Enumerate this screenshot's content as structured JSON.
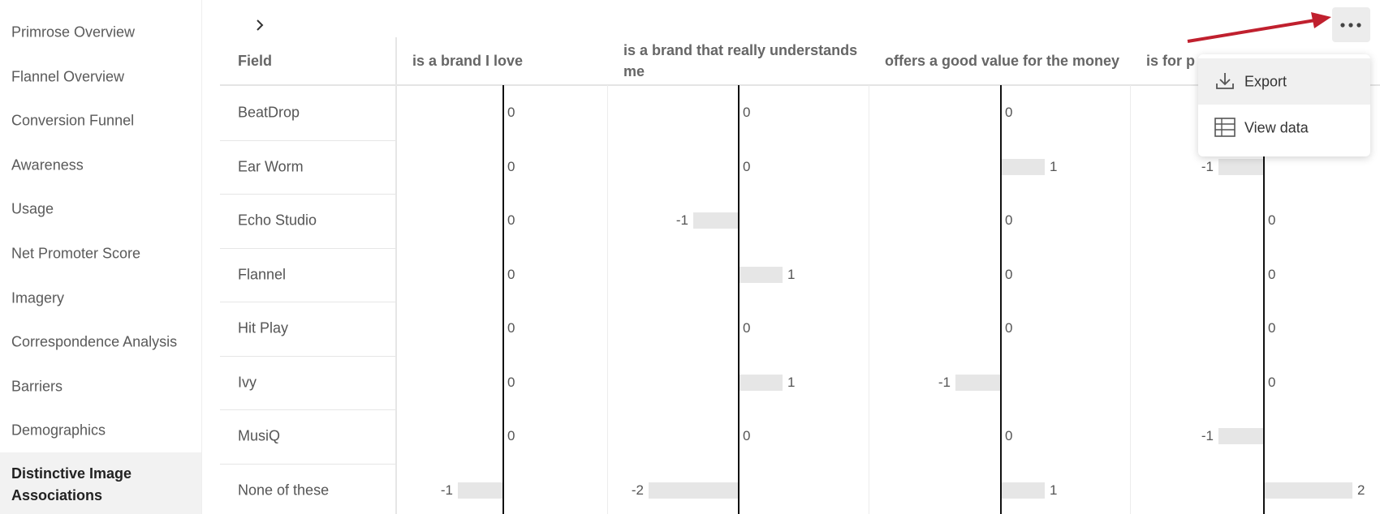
{
  "sidebar": {
    "items": [
      "Primrose Overview",
      "Flannel Overview",
      "Conversion Funnel",
      "Awareness",
      "Usage",
      "Net Promoter Score",
      "Imagery",
      "Correspondence Analysis",
      "Barriers",
      "Demographics"
    ],
    "selected": "Distinctive Image Associations"
  },
  "table": {
    "field_header": "Field",
    "columns": [
      "is a brand I love",
      "is a brand that really understands me",
      "offers a good value for the money",
      "is for p"
    ],
    "rows": [
      {
        "label": "BeatDrop",
        "values": [
          0,
          0,
          0,
          null
        ]
      },
      {
        "label": "Ear Worm",
        "values": [
          0,
          0,
          1,
          -1
        ]
      },
      {
        "label": "Echo Studio",
        "values": [
          0,
          -1,
          0,
          0
        ]
      },
      {
        "label": "Flannel",
        "values": [
          0,
          1,
          0,
          0
        ]
      },
      {
        "label": "Hit Play",
        "values": [
          0,
          0,
          0,
          0
        ]
      },
      {
        "label": "Ivy",
        "values": [
          0,
          1,
          -1,
          0
        ]
      },
      {
        "label": "MusiQ",
        "values": [
          0,
          0,
          0,
          -1
        ]
      },
      {
        "label": "None of these",
        "values": [
          -1,
          -2,
          1,
          2
        ]
      }
    ]
  },
  "menu": {
    "items": [
      "Export",
      "View data"
    ]
  }
}
